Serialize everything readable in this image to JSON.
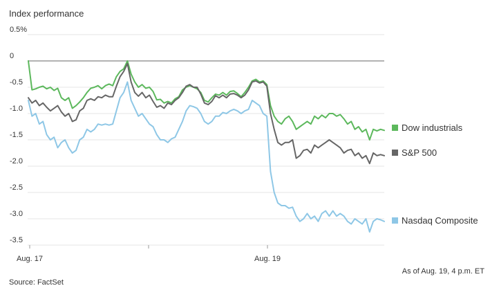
{
  "chart_data": {
    "type": "line",
    "title": "Index performance",
    "x_ticks": [
      "Aug. 17",
      "Aug. 19"
    ],
    "y_ticks": [
      "0.5%",
      "0",
      "-0.5",
      "-1.0",
      "-1.5",
      "-2.0",
      "-2.5",
      "-3.0",
      "-3.5"
    ],
    "ylim": [
      -3.5,
      0.5
    ],
    "grid": true,
    "legend_placement": "right, at series ends",
    "series": [
      {
        "name": "Dow industrials",
        "color": "#5cb85c",
        "values": [
          0,
          -0.55,
          -0.53,
          -0.5,
          -0.48,
          -0.53,
          -0.5,
          -0.56,
          -0.52,
          -0.7,
          -0.75,
          -0.7,
          -0.9,
          -0.85,
          -0.78,
          -0.7,
          -0.6,
          -0.52,
          -0.5,
          -0.47,
          -0.53,
          -0.47,
          -0.44,
          -0.47,
          -0.3,
          -0.2,
          -0.15,
          0,
          -0.25,
          -0.4,
          -0.5,
          -0.45,
          -0.52,
          -0.5,
          -0.58,
          -0.74,
          -0.73,
          -0.8,
          -0.77,
          -0.8,
          -0.72,
          -0.68,
          -0.55,
          -0.5,
          -0.47,
          -0.5,
          -0.53,
          -0.6,
          -0.75,
          -0.78,
          -0.7,
          -0.63,
          -0.65,
          -0.6,
          -0.65,
          -0.58,
          -0.57,
          -0.62,
          -0.68,
          -0.6,
          -0.5,
          -0.38,
          -0.35,
          -0.4,
          -0.38,
          -0.45,
          -0.85,
          -1.05,
          -1.15,
          -1.2,
          -1.1,
          -1.05,
          -1.15,
          -1.3,
          -1.25,
          -1.2,
          -1.15,
          -1.2,
          -1.05,
          -1.1,
          -1.03,
          -1.08,
          -1.0,
          -1.0,
          -1.05,
          -1.02,
          -1.1,
          -1.2,
          -1.15,
          -1.3,
          -1.25,
          -1.35,
          -1.3,
          -1.5,
          -1.3,
          -1.33,
          -1.3,
          -1.32
        ]
      },
      {
        "name": "S&P 500",
        "color": "#666666",
        "values": [
          -0.7,
          -0.8,
          -0.75,
          -0.85,
          -0.8,
          -0.88,
          -0.95,
          -0.9,
          -0.85,
          -0.97,
          -1.05,
          -1.0,
          -1.15,
          -1.12,
          -0.95,
          -0.9,
          -0.75,
          -0.72,
          -0.75,
          -0.68,
          -0.7,
          -0.65,
          -0.68,
          -0.68,
          -0.48,
          -0.3,
          -0.2,
          -0.05,
          -0.4,
          -0.6,
          -0.67,
          -0.6,
          -0.7,
          -0.65,
          -0.77,
          -0.88,
          -0.85,
          -0.9,
          -0.8,
          -0.83,
          -0.75,
          -0.7,
          -0.6,
          -0.48,
          -0.45,
          -0.5,
          -0.5,
          -0.63,
          -0.8,
          -0.83,
          -0.77,
          -0.66,
          -0.7,
          -0.65,
          -0.7,
          -0.63,
          -0.62,
          -0.65,
          -0.7,
          -0.65,
          -0.55,
          -0.4,
          -0.38,
          -0.42,
          -0.4,
          -0.48,
          -1.0,
          -1.3,
          -1.55,
          -1.6,
          -1.55,
          -1.55,
          -1.5,
          -1.85,
          -1.8,
          -1.7,
          -1.68,
          -1.75,
          -1.6,
          -1.65,
          -1.6,
          -1.55,
          -1.5,
          -1.55,
          -1.6,
          -1.65,
          -1.75,
          -1.7,
          -1.68,
          -1.8,
          -1.75,
          -1.85,
          -1.8,
          -1.95,
          -1.75,
          -1.8,
          -1.78,
          -1.8
        ]
      },
      {
        "name": "Nasdaq Composite",
        "color": "#8ec7e6",
        "values": [
          -0.75,
          -1.05,
          -1.0,
          -1.2,
          -1.15,
          -1.4,
          -1.5,
          -1.45,
          -1.65,
          -1.55,
          -1.5,
          -1.65,
          -1.75,
          -1.7,
          -1.5,
          -1.45,
          -1.3,
          -1.35,
          -1.3,
          -1.2,
          -1.22,
          -1.2,
          -1.22,
          -1.2,
          -0.95,
          -0.7,
          -0.6,
          -0.4,
          -0.75,
          -0.9,
          -1.05,
          -1.0,
          -1.1,
          -1.2,
          -1.25,
          -1.4,
          -1.5,
          -1.5,
          -1.55,
          -1.48,
          -1.45,
          -1.3,
          -1.15,
          -0.95,
          -0.85,
          -0.87,
          -0.9,
          -1.0,
          -1.15,
          -1.2,
          -1.15,
          -1.05,
          -1.05,
          -0.98,
          -1.0,
          -0.95,
          -0.92,
          -0.95,
          -1.0,
          -0.95,
          -0.92,
          -0.75,
          -0.8,
          -0.85,
          -1.0,
          -1.05,
          -2.1,
          -2.5,
          -2.7,
          -2.75,
          -2.75,
          -2.8,
          -2.78,
          -2.95,
          -3.05,
          -3.0,
          -2.9,
          -3.0,
          -2.95,
          -3.05,
          -2.9,
          -2.85,
          -2.95,
          -2.85,
          -2.95,
          -2.9,
          -2.95,
          -3.05,
          -3.1,
          -3.0,
          -3.05,
          -3.1,
          -3.0,
          -3.25,
          -3.05,
          -3.0,
          -3.02,
          -3.05
        ]
      }
    ]
  },
  "footer": {
    "source": "Source: FactSet",
    "timestamp": "As of Aug. 19, 4 p.m. ET"
  }
}
